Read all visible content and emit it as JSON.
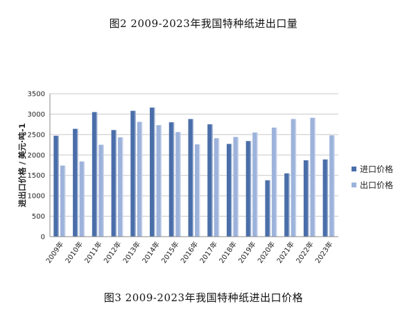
{
  "top_caption": "图2 2009-2023年我国特种纸进出口量",
  "bottom_caption": "图3 2009-2023年我国特种纸进出口价格",
  "chart_data": {
    "type": "bar",
    "title": "",
    "xlabel": "",
    "ylabel": "进出口价格 / 美元·吨-1",
    "ylim": [
      0,
      3500
    ],
    "yticks": [
      0,
      500,
      1000,
      1500,
      2000,
      2500,
      3000,
      3500
    ],
    "grid": true,
    "legend_position": "right",
    "categories": [
      "2009年",
      "2010年",
      "2011年",
      "2012年",
      "2013年",
      "2014年",
      "2015年",
      "2016年",
      "2017年",
      "2018年",
      "2019年",
      "2020年",
      "2021年",
      "2022年",
      "2023年"
    ],
    "series": [
      {
        "name": "进口价格",
        "color": "#4a6ea9",
        "values": [
          2470,
          2640,
          3050,
          2610,
          3080,
          3160,
          2800,
          2880,
          2750,
          2270,
          2340,
          1380,
          1550,
          1870,
          1890
        ]
      },
      {
        "name": "出口价格",
        "color": "#9db3db",
        "values": [
          1740,
          1840,
          2250,
          2430,
          2810,
          2730,
          2560,
          2260,
          2410,
          2440,
          2550,
          2670,
          2880,
          2910,
          2480
        ]
      }
    ]
  }
}
